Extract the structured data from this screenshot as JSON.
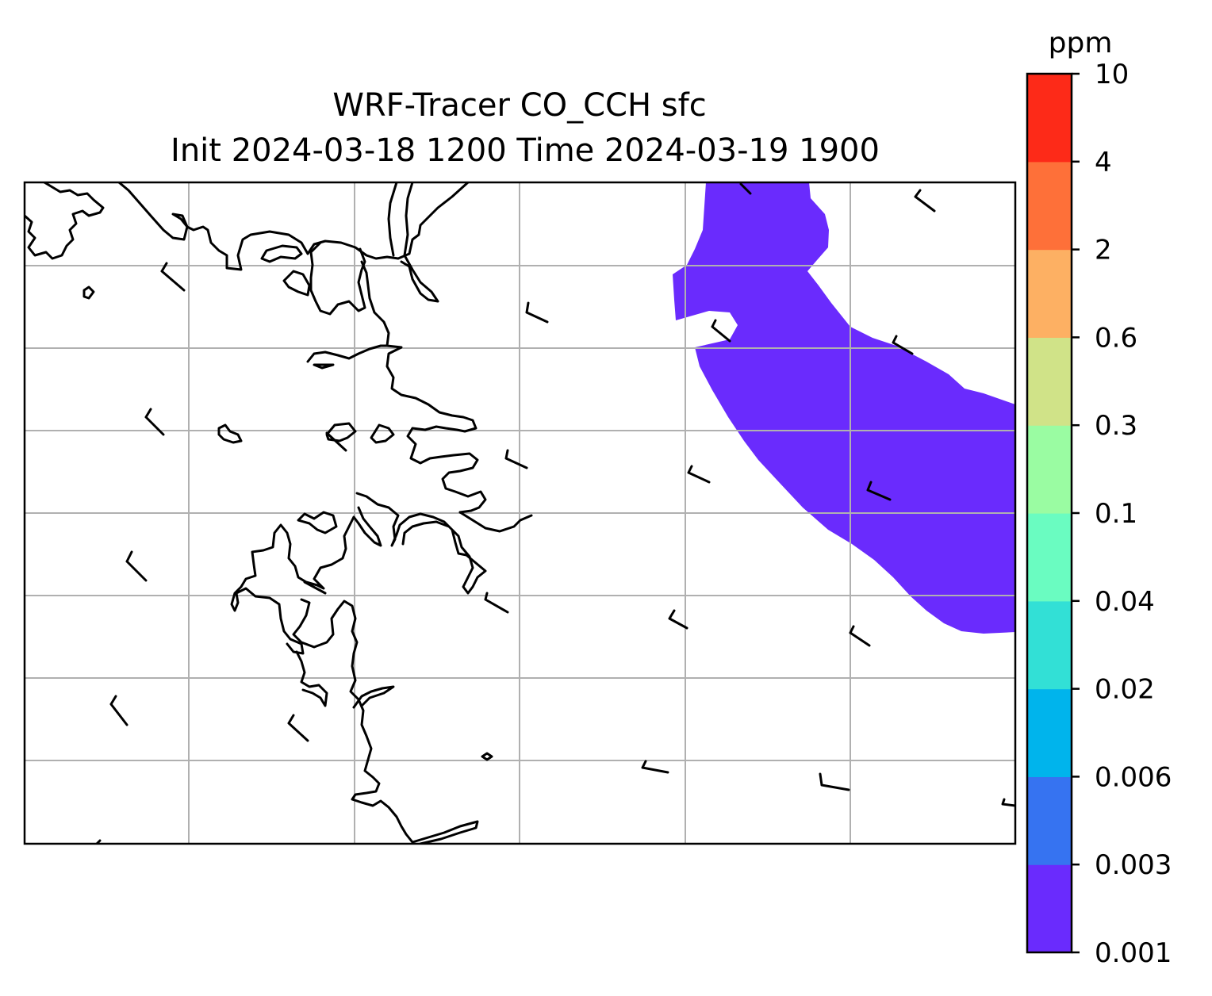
{
  "title": {
    "line1": "WRF-Tracer CO_CCH sfc",
    "line2": "Init 2024-03-18 1200 Time 2024-03-19 1900"
  },
  "colorbar": {
    "units": "ppm",
    "levels": [
      {
        "label": "0.001",
        "color": "#6a2bfd"
      },
      {
        "label": "0.003",
        "color": "#3673f1"
      },
      {
        "label": "0.006",
        "color": "#00b4ec"
      },
      {
        "label": "0.02",
        "color": "#32e0d6"
      },
      {
        "label": "0.04",
        "color": "#6afcc1"
      },
      {
        "label": "0.1",
        "color": "#9afca2"
      },
      {
        "label": "0.3",
        "color": "#d0e388"
      },
      {
        "label": "0.6",
        "color": "#fdb063"
      },
      {
        "label": "2",
        "color": "#fe7039"
      },
      {
        "label": "4",
        "color": "#fd2a18"
      },
      {
        "label": "10",
        "color": null
      }
    ]
  },
  "map": {
    "plume_color": "#6a2bfd",
    "plume_level": "0.001-0.003 ppm",
    "gridline_color": "#b0b0b0",
    "coastline_color": "#000000",
    "features": [
      "coastline",
      "gridlines",
      "wind-barbs",
      "tracer-plume"
    ]
  }
}
